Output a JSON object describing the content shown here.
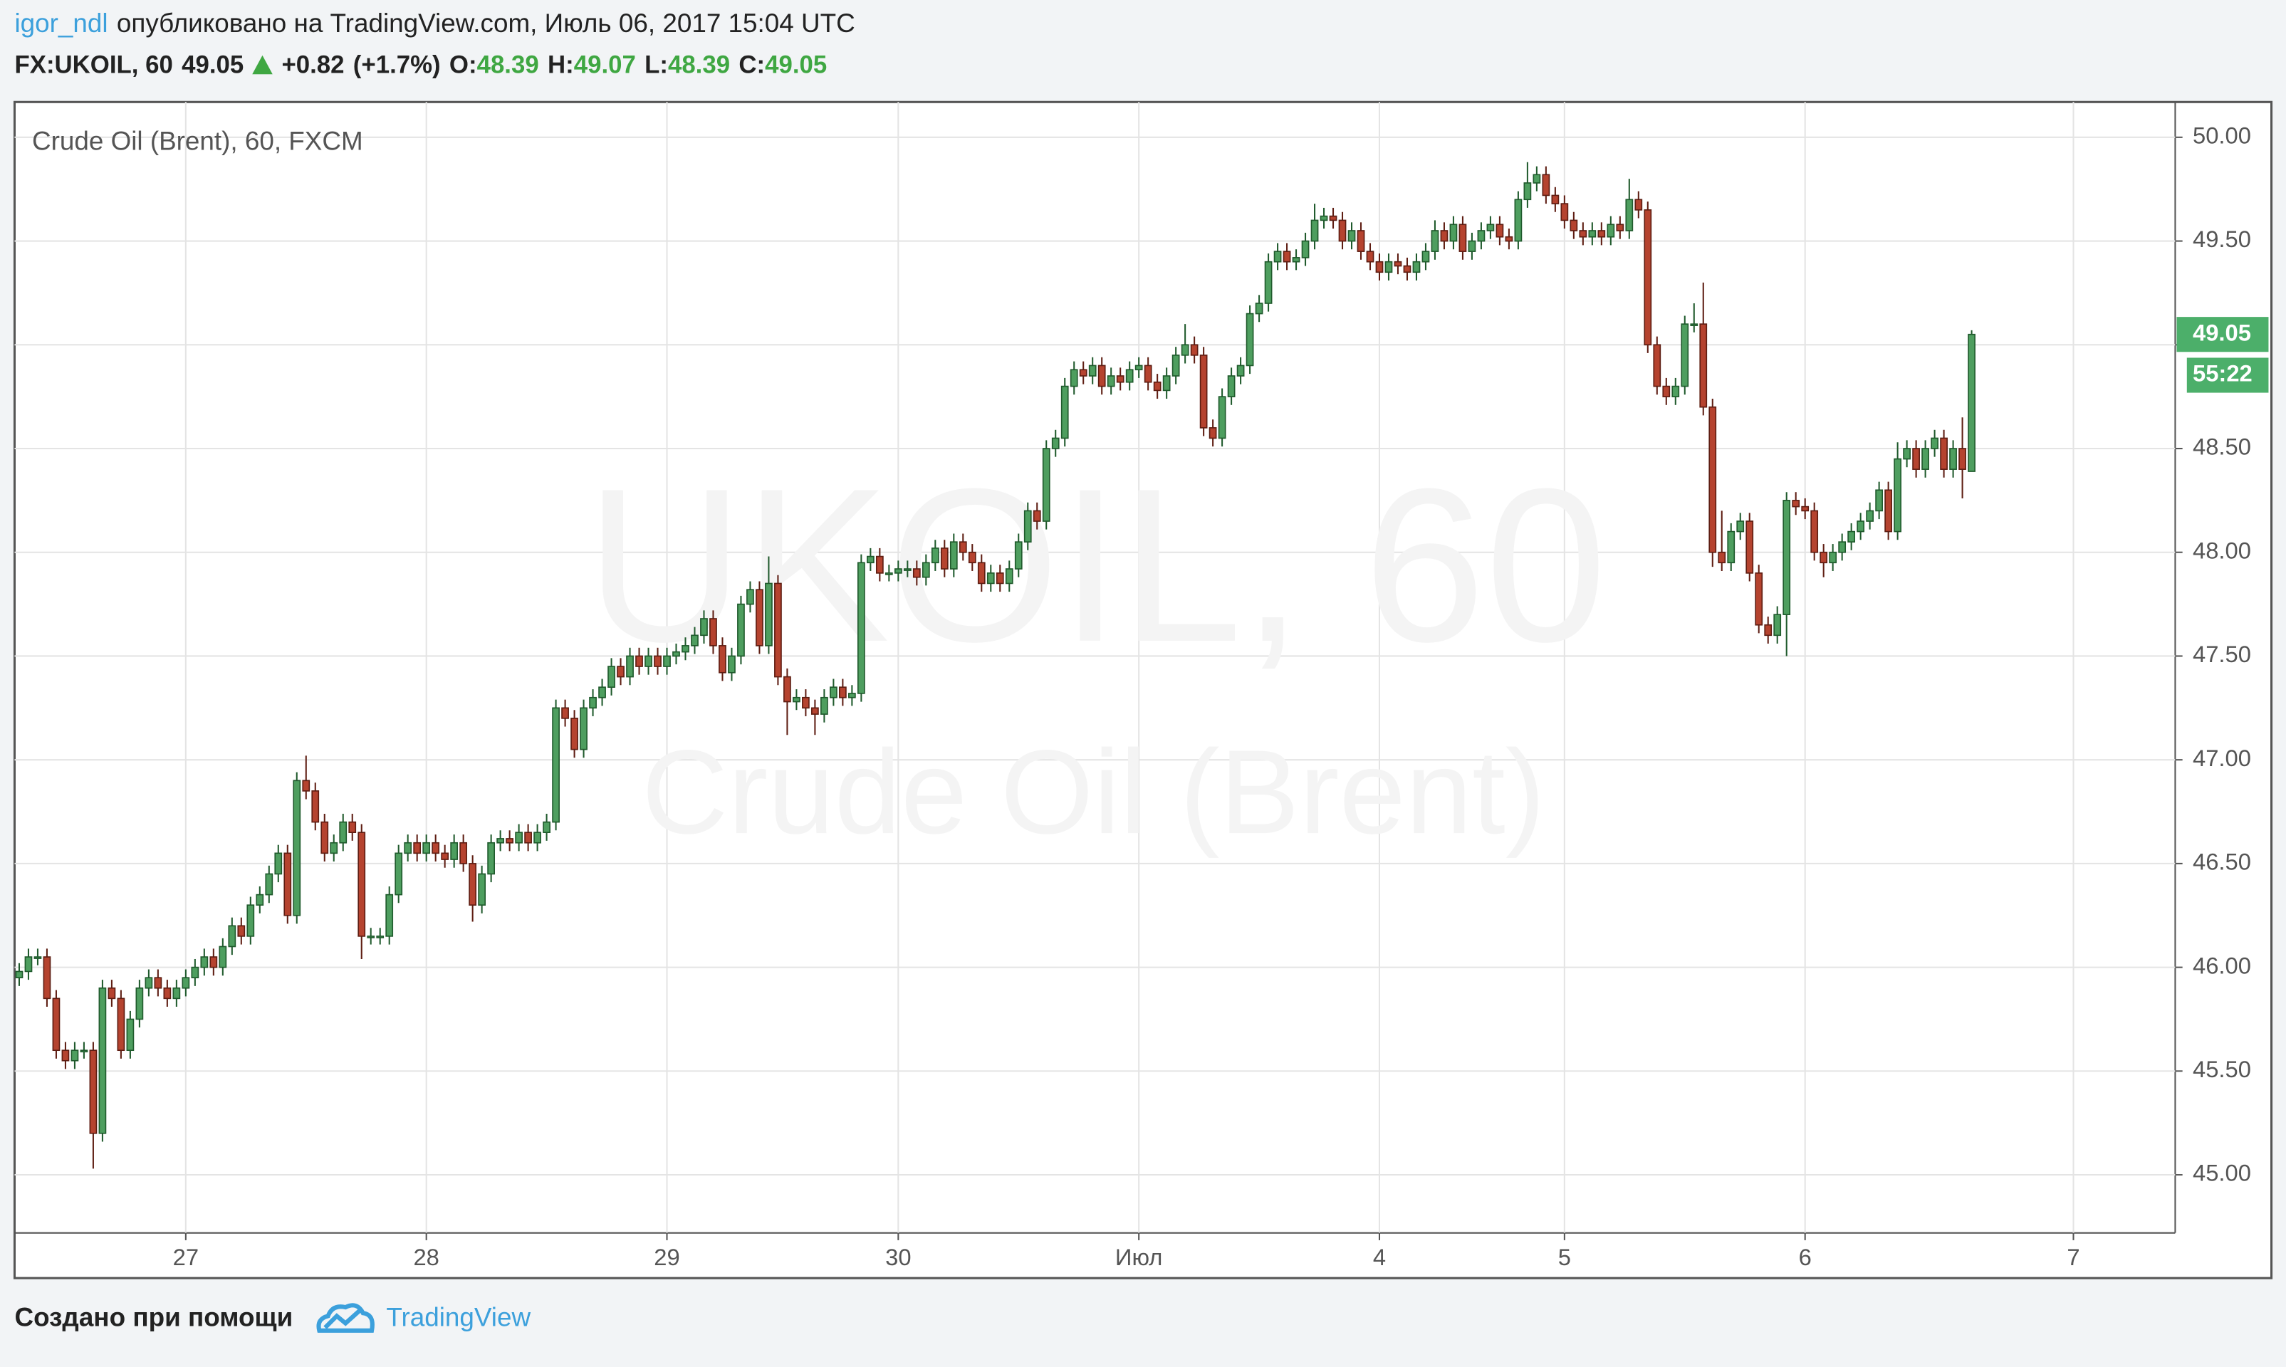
{
  "header": {
    "user": "igor_ndl",
    "published": "опубликовано на TradingView.com, Июль 06, 2017 15:04 UTC",
    "symbol": "FX:UKOIL, 60",
    "change": "+0.82",
    "change_pct": "(+1.7%)",
    "open_label": "O:",
    "high_label": "H:",
    "low_label": "L:",
    "close_label": "C:"
  },
  "footer": {
    "made_with": "Создано при помощи",
    "brand": "TradingView"
  },
  "chart_data": {
    "type": "candlestick",
    "title": "Crude Oil (Brent), 60, FXCM",
    "watermark_symbol": "UKOIL, 60",
    "watermark_name": "Crude Oil (Brent)",
    "countdown": "55:22",
    "up_color": "#4e9e5f",
    "down_color": "#b5432f",
    "grid": true,
    "xlim": [
      -0.5,
      233
    ],
    "ylim": [
      44.72,
      50.17
    ],
    "xticks": [
      {
        "value": 18,
        "label": "27"
      },
      {
        "value": 44,
        "label": "28"
      },
      {
        "value": 70,
        "label": "29"
      },
      {
        "value": 95,
        "label": "30"
      },
      {
        "value": 121,
        "label": "Июл"
      },
      {
        "value": 147,
        "label": "4"
      },
      {
        "value": 167,
        "label": "5"
      },
      {
        "value": 193,
        "label": "6"
      },
      {
        "value": 222,
        "label": "7"
      }
    ],
    "yticks": [
      {
        "value": 45,
        "label": "45.00"
      },
      {
        "value": 45.5,
        "label": "45.50"
      },
      {
        "value": 46,
        "label": "46.00"
      },
      {
        "value": 46.5,
        "label": "46.50"
      },
      {
        "value": 47,
        "label": "47.00"
      },
      {
        "value": 47.5,
        "label": "47.50"
      },
      {
        "value": 48,
        "label": "48.00"
      },
      {
        "value": 48.5,
        "label": "48.50"
      },
      {
        "value": 49,
        "label": "49.00"
      },
      {
        "value": 49.5,
        "label": "49.50"
      },
      {
        "value": 50,
        "label": "50.00"
      }
    ],
    "open": [
      45.95,
      45.98,
      46.05,
      46.05,
      45.85,
      45.6,
      45.55,
      45.6,
      45.6,
      45.2,
      45.9,
      45.85,
      45.6,
      45.75,
      45.9,
      45.95,
      45.9,
      45.85,
      45.9,
      45.95,
      46.0,
      46.05,
      46.0,
      46.1,
      46.2,
      46.15,
      46.3,
      46.35,
      46.45,
      46.55,
      46.25,
      46.9,
      46.85,
      46.7,
      46.55,
      46.6,
      46.7,
      46.65,
      46.15,
      46.15,
      46.15,
      46.35,
      46.55,
      46.6,
      46.55,
      46.6,
      46.55,
      46.52,
      46.6,
      46.5,
      46.3,
      46.45,
      46.6,
      46.62,
      46.6,
      46.65,
      46.6,
      46.65,
      46.7,
      47.25,
      47.2,
      47.05,
      47.25,
      47.3,
      47.35,
      47.45,
      47.4,
      47.5,
      47.45,
      47.5,
      47.45,
      47.5,
      47.52,
      47.55,
      47.6,
      47.68,
      47.55,
      47.42,
      47.5,
      47.75,
      47.82,
      47.55,
      47.85,
      47.4,
      47.28,
      47.3,
      47.25,
      47.22,
      47.3,
      47.35,
      47.3,
      47.32,
      47.95,
      47.98,
      47.9,
      47.9,
      47.92,
      47.92,
      47.88,
      47.95,
      48.02,
      47.92,
      48.05,
      48.0,
      47.95,
      47.85,
      47.9,
      47.85,
      47.92,
      48.05,
      48.2,
      48.15,
      48.5,
      48.55,
      48.8,
      48.88,
      48.85,
      48.9,
      48.8,
      48.85,
      48.82,
      48.88,
      48.9,
      48.82,
      48.78,
      48.85,
      48.95,
      49.0,
      48.95,
      48.6,
      48.55,
      48.75,
      48.85,
      48.9,
      49.15,
      49.2,
      49.4,
      49.45,
      49.4,
      49.42,
      49.5,
      49.6,
      49.62,
      49.6,
      49.5,
      49.55,
      49.45,
      49.4,
      49.35,
      49.4,
      49.38,
      49.35,
      49.4,
      49.45,
      49.55,
      49.5,
      49.58,
      49.45,
      49.5,
      49.55,
      49.58,
      49.52,
      49.5,
      49.7,
      49.78,
      49.82,
      49.72,
      49.68,
      49.6,
      49.55,
      49.52,
      49.55,
      49.52,
      49.58,
      49.55,
      49.7,
      49.65,
      49.0,
      48.8,
      48.75,
      48.8,
      49.1,
      49.1,
      48.7,
      48.0,
      47.95,
      48.1,
      48.15,
      47.9,
      47.65,
      47.6,
      47.7,
      48.25,
      48.22,
      48.2,
      48.0,
      47.95,
      48.0,
      48.05,
      48.1,
      48.15,
      48.2,
      48.3,
      48.1,
      48.45,
      48.5,
      48.4,
      48.5,
      48.55,
      48.4,
      48.5,
      48.39
    ],
    "high": [
      46.02,
      46.09,
      46.09,
      46.09,
      45.89,
      45.64,
      45.64,
      45.64,
      45.64,
      45.94,
      45.94,
      45.89,
      45.79,
      45.94,
      45.99,
      45.99,
      45.94,
      45.94,
      45.99,
      46.04,
      46.09,
      46.09,
      46.14,
      46.24,
      46.24,
      46.34,
      46.39,
      46.49,
      46.59,
      46.59,
      46.94,
      47.02,
      46.89,
      46.74,
      46.64,
      46.74,
      46.74,
      46.69,
      46.19,
      46.19,
      46.39,
      46.59,
      46.64,
      46.64,
      46.64,
      46.64,
      46.59,
      46.64,
      46.64,
      46.54,
      46.49,
      46.64,
      46.66,
      46.66,
      46.69,
      46.69,
      46.69,
      46.74,
      47.29,
      47.29,
      47.24,
      47.29,
      47.34,
      47.39,
      47.49,
      47.49,
      47.54,
      47.54,
      47.54,
      47.54,
      47.54,
      47.56,
      47.59,
      47.64,
      47.72,
      47.72,
      47.59,
      47.54,
      47.79,
      47.86,
      47.86,
      47.98,
      47.89,
      47.44,
      47.34,
      47.34,
      47.29,
      47.34,
      47.39,
      47.39,
      47.36,
      47.99,
      48.02,
      48.02,
      47.94,
      47.96,
      47.96,
      47.96,
      47.99,
      48.06,
      48.06,
      48.09,
      48.09,
      48.04,
      47.99,
      47.94,
      47.94,
      47.96,
      48.09,
      48.24,
      48.24,
      48.54,
      48.59,
      48.84,
      48.92,
      48.92,
      48.94,
      48.94,
      48.89,
      48.89,
      48.92,
      48.94,
      48.94,
      48.86,
      48.89,
      48.99,
      49.1,
      49.04,
      48.99,
      48.64,
      48.79,
      48.89,
      48.94,
      49.19,
      49.24,
      49.44,
      49.49,
      49.49,
      49.46,
      49.54,
      49.68,
      49.66,
      49.66,
      49.64,
      49.59,
      49.59,
      49.49,
      49.44,
      49.44,
      49.44,
      49.42,
      49.44,
      49.49,
      49.6,
      49.59,
      49.62,
      49.62,
      49.54,
      49.59,
      49.62,
      49.62,
      49.56,
      49.74,
      49.88,
      49.86,
      49.86,
      49.76,
      49.72,
      49.64,
      49.59,
      49.59,
      49.59,
      49.62,
      49.62,
      49.8,
      49.74,
      49.69,
      49.04,
      48.84,
      48.84,
      49.14,
      49.2,
      49.3,
      48.74,
      48.2,
      48.14,
      48.19,
      48.19,
      47.94,
      47.69,
      47.74,
      48.29,
      48.29,
      48.26,
      48.24,
      48.04,
      48.04,
      48.09,
      48.14,
      48.19,
      48.24,
      48.34,
      48.34,
      48.53,
      48.54,
      48.54,
      48.54,
      48.59,
      48.59,
      48.54,
      48.65,
      49.07
    ],
    "low": [
      45.91,
      45.94,
      46.01,
      45.81,
      45.56,
      45.51,
      45.51,
      45.56,
      45.03,
      45.16,
      45.81,
      45.56,
      45.56,
      45.71,
      45.86,
      45.86,
      45.81,
      45.81,
      45.86,
      45.91,
      45.96,
      45.96,
      45.96,
      46.06,
      46.11,
      46.11,
      46.26,
      46.31,
      46.41,
      46.21,
      46.21,
      46.81,
      46.66,
      46.51,
      46.51,
      46.56,
      46.61,
      46.04,
      46.11,
      46.11,
      46.11,
      46.31,
      46.51,
      46.51,
      46.51,
      46.51,
      46.48,
      46.48,
      46.46,
      46.22,
      46.26,
      46.41,
      46.56,
      46.56,
      46.56,
      46.56,
      46.56,
      46.61,
      46.66,
      47.16,
      47.01,
      47.01,
      47.21,
      47.26,
      47.31,
      47.36,
      47.36,
      47.41,
      47.41,
      47.41,
      47.41,
      47.46,
      47.48,
      47.51,
      47.56,
      47.51,
      47.38,
      47.38,
      47.46,
      47.71,
      47.51,
      47.51,
      47.36,
      47.12,
      47.24,
      47.21,
      47.12,
      47.18,
      47.26,
      47.26,
      47.26,
      47.28,
      47.91,
      47.86,
      47.86,
      47.86,
      47.88,
      47.84,
      47.84,
      47.91,
      47.88,
      47.88,
      47.96,
      47.91,
      47.81,
      47.81,
      47.81,
      47.81,
      47.88,
      48.01,
      48.11,
      48.11,
      48.46,
      48.51,
      48.76,
      48.81,
      48.81,
      48.76,
      48.76,
      48.78,
      48.78,
      48.84,
      48.78,
      48.74,
      48.74,
      48.81,
      48.91,
      48.91,
      48.56,
      48.51,
      48.51,
      48.71,
      48.81,
      48.86,
      49.11,
      49.16,
      49.36,
      49.36,
      49.36,
      49.38,
      49.46,
      49.56,
      49.56,
      49.46,
      49.46,
      49.41,
      49.36,
      49.31,
      49.31,
      49.34,
      49.31,
      49.31,
      49.36,
      49.41,
      49.46,
      49.46,
      49.41,
      49.41,
      49.46,
      49.51,
      49.48,
      49.46,
      49.46,
      49.66,
      49.74,
      49.68,
      49.64,
      49.56,
      49.51,
      49.48,
      49.48,
      49.48,
      49.48,
      49.51,
      49.51,
      49.61,
      48.96,
      48.76,
      48.71,
      48.71,
      48.76,
      49.06,
      48.66,
      47.93,
      47.91,
      47.91,
      48.06,
      47.86,
      47.61,
      47.56,
      47.56,
      47.5,
      48.18,
      48.16,
      47.96,
      47.88,
      47.91,
      47.96,
      48.01,
      48.06,
      48.11,
      48.16,
      48.06,
      48.06,
      48.41,
      48.36,
      48.36,
      48.46,
      48.36,
      48.36,
      48.26,
      48.39
    ],
    "close": [
      45.98,
      46.05,
      46.05,
      45.85,
      45.6,
      45.55,
      45.6,
      45.6,
      45.2,
      45.9,
      45.85,
      45.6,
      45.75,
      45.9,
      45.95,
      45.9,
      45.85,
      45.9,
      45.95,
      46.0,
      46.05,
      46.0,
      46.1,
      46.2,
      46.15,
      46.3,
      46.35,
      46.45,
      46.55,
      46.25,
      46.9,
      46.85,
      46.7,
      46.55,
      46.6,
      46.7,
      46.65,
      46.15,
      46.15,
      46.15,
      46.35,
      46.55,
      46.6,
      46.55,
      46.6,
      46.55,
      46.52,
      46.6,
      46.5,
      46.3,
      46.45,
      46.6,
      46.62,
      46.6,
      46.65,
      46.6,
      46.65,
      46.7,
      47.25,
      47.2,
      47.05,
      47.25,
      47.3,
      47.35,
      47.45,
      47.4,
      47.5,
      47.45,
      47.5,
      47.45,
      47.5,
      47.52,
      47.55,
      47.6,
      47.68,
      47.55,
      47.42,
      47.5,
      47.75,
      47.82,
      47.55,
      47.85,
      47.4,
      47.28,
      47.3,
      47.25,
      47.22,
      47.3,
      47.35,
      47.3,
      47.32,
      47.95,
      47.98,
      47.9,
      47.9,
      47.92,
      47.92,
      47.88,
      47.95,
      48.02,
      47.92,
      48.05,
      48.0,
      47.95,
      47.85,
      47.9,
      47.85,
      47.92,
      48.05,
      48.2,
      48.15,
      48.5,
      48.55,
      48.8,
      48.88,
      48.85,
      48.9,
      48.8,
      48.85,
      48.82,
      48.88,
      48.9,
      48.82,
      48.78,
      48.85,
      48.95,
      49.0,
      48.95,
      48.6,
      48.55,
      48.75,
      48.85,
      48.9,
      49.15,
      49.2,
      49.4,
      49.45,
      49.4,
      49.42,
      49.5,
      49.6,
      49.62,
      49.6,
      49.5,
      49.55,
      49.45,
      49.4,
      49.35,
      49.4,
      49.38,
      49.35,
      49.4,
      49.45,
      49.55,
      49.5,
      49.58,
      49.45,
      49.5,
      49.55,
      49.58,
      49.52,
      49.5,
      49.7,
      49.78,
      49.82,
      49.72,
      49.68,
      49.6,
      49.55,
      49.52,
      49.55,
      49.52,
      49.58,
      49.55,
      49.7,
      49.65,
      49.0,
      48.8,
      48.75,
      48.8,
      49.1,
      49.1,
      48.7,
      48.0,
      47.95,
      48.1,
      48.15,
      47.9,
      47.65,
      47.6,
      47.7,
      48.25,
      48.22,
      48.2,
      48.0,
      47.95,
      48.0,
      48.05,
      48.1,
      48.15,
      48.2,
      48.3,
      48.1,
      48.45,
      48.5,
      48.4,
      48.5,
      48.55,
      48.4,
      48.5,
      48.4,
      49.05
    ]
  }
}
